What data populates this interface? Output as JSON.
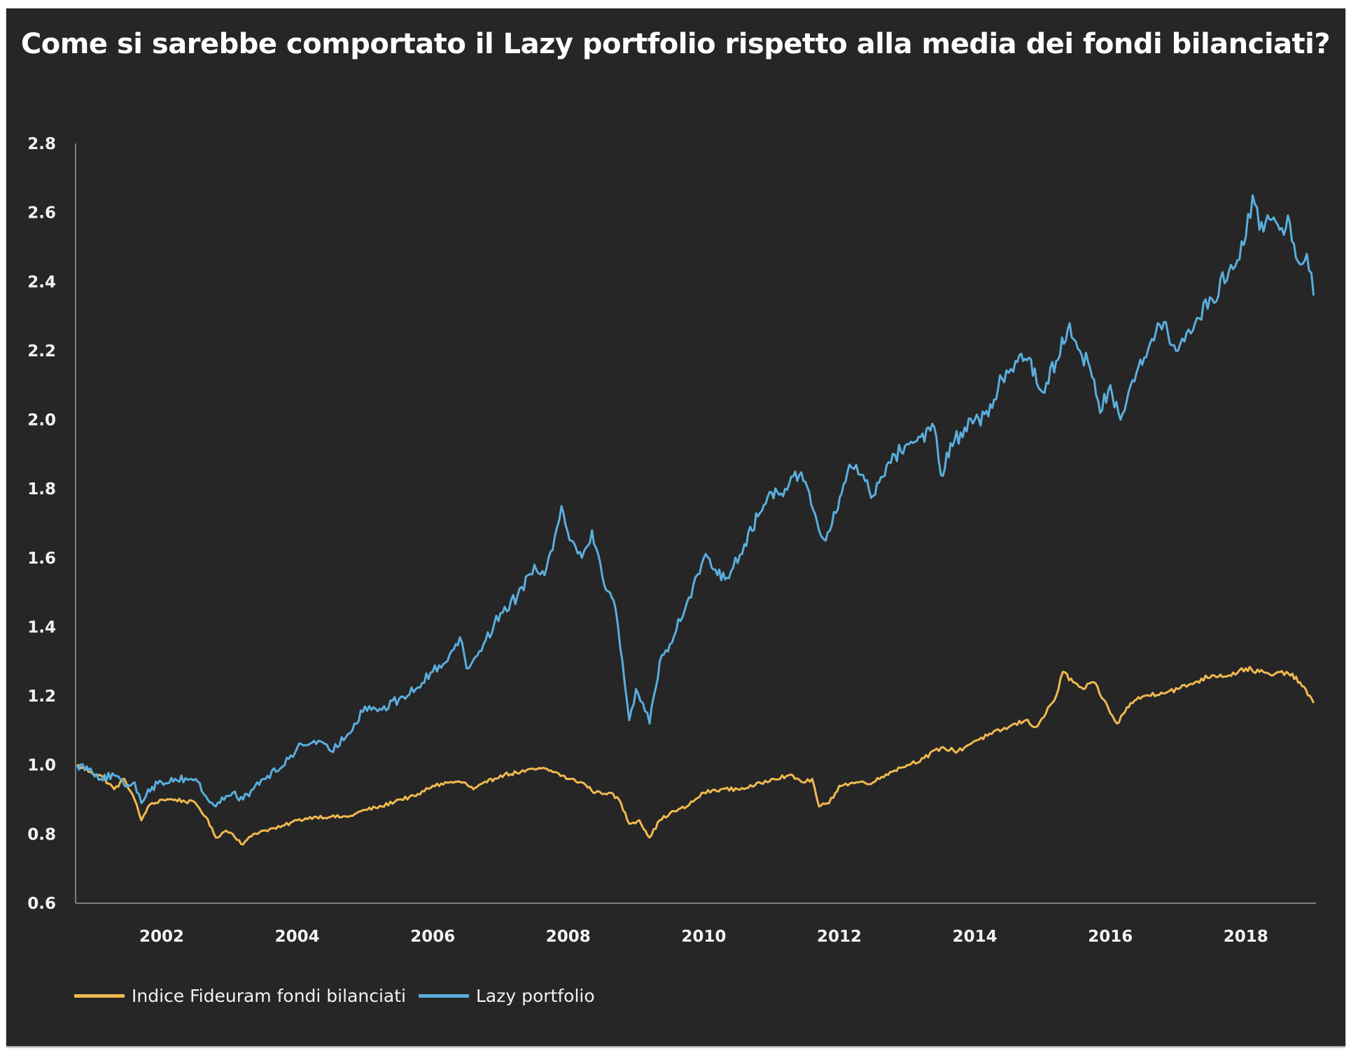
{
  "chart_data": {
    "type": "line",
    "title": "Come si sarebbe comportato il Lazy portfolio rispetto alla media dei fondi bilanciati?",
    "xlabel": "",
    "ylabel": "",
    "xlim": [
      2000.73,
      2019.02
    ],
    "ylim": [
      0.6,
      2.8
    ],
    "y_ticks": [
      "0.6",
      "0.8",
      "1.0",
      "1.2",
      "1.4",
      "1.6",
      "1.8",
      "2.0",
      "2.2",
      "2.4",
      "2.6",
      "2.8"
    ],
    "x_ticks": [
      "2002",
      "2004",
      "2006",
      "2008",
      "2010",
      "2012",
      "2014",
      "2016",
      "2018"
    ],
    "grid": false,
    "legend_position": "bottom-left",
    "background": "#262626",
    "series": [
      {
        "name": "Indice Fideuram fondi bilanciati",
        "color": "#f0b94f",
        "x": [
          2000.75,
          2000.95,
          2001.1,
          2001.3,
          2001.45,
          2001.6,
          2001.7,
          2001.8,
          2002.0,
          2002.2,
          2002.5,
          2002.65,
          2002.8,
          2002.95,
          2003.05,
          2003.2,
          2003.35,
          2003.5,
          2003.75,
          2004.0,
          2004.25,
          2004.5,
          2004.75,
          2005.0,
          2005.25,
          2005.5,
          2005.75,
          2006.0,
          2006.25,
          2006.45,
          2006.6,
          2006.8,
          2007.0,
          2007.3,
          2007.6,
          2007.8,
          2008.0,
          2008.2,
          2008.4,
          2008.6,
          2008.75,
          2008.9,
          2009.05,
          2009.2,
          2009.35,
          2009.5,
          2009.75,
          2010.0,
          2010.25,
          2010.5,
          2010.75,
          2011.0,
          2011.25,
          2011.5,
          2011.6,
          2011.7,
          2011.85,
          2012.0,
          2012.25,
          2012.5,
          2012.75,
          2013.0,
          2013.25,
          2013.5,
          2013.75,
          2014.0,
          2014.25,
          2014.5,
          2014.75,
          2014.9,
          2015.05,
          2015.2,
          2015.3,
          2015.45,
          2015.6,
          2015.75,
          2015.9,
          2016.0,
          2016.1,
          2016.3,
          2016.5,
          2016.75,
          2017.0,
          2017.25,
          2017.5,
          2017.75,
          2018.0,
          2018.2,
          2018.4,
          2018.6,
          2018.8,
          2019.0
        ],
        "values": [
          1.0,
          0.98,
          0.97,
          0.93,
          0.96,
          0.9,
          0.84,
          0.88,
          0.9,
          0.9,
          0.89,
          0.85,
          0.79,
          0.81,
          0.8,
          0.77,
          0.8,
          0.81,
          0.82,
          0.84,
          0.85,
          0.85,
          0.85,
          0.87,
          0.88,
          0.9,
          0.91,
          0.94,
          0.95,
          0.95,
          0.93,
          0.95,
          0.97,
          0.98,
          0.99,
          0.98,
          0.96,
          0.95,
          0.92,
          0.92,
          0.9,
          0.83,
          0.84,
          0.79,
          0.84,
          0.86,
          0.88,
          0.92,
          0.93,
          0.93,
          0.94,
          0.96,
          0.97,
          0.95,
          0.96,
          0.88,
          0.89,
          0.94,
          0.95,
          0.95,
          0.98,
          1.0,
          1.02,
          1.05,
          1.04,
          1.07,
          1.09,
          1.11,
          1.13,
          1.11,
          1.15,
          1.2,
          1.27,
          1.24,
          1.22,
          1.24,
          1.19,
          1.15,
          1.12,
          1.18,
          1.2,
          1.21,
          1.22,
          1.24,
          1.26,
          1.26,
          1.28,
          1.27,
          1.26,
          1.27,
          1.24,
          1.18
        ]
      },
      {
        "name": "Lazy portfolio",
        "color": "#5aaede",
        "x": [
          2000.75,
          2000.95,
          2001.1,
          2001.3,
          2001.45,
          2001.6,
          2001.7,
          2001.8,
          2002.0,
          2002.2,
          2002.5,
          2002.65,
          2002.8,
          2002.95,
          2003.05,
          2003.2,
          2003.35,
          2003.5,
          2003.75,
          2004.0,
          2004.25,
          2004.5,
          2004.75,
          2005.0,
          2005.25,
          2005.5,
          2005.75,
          2006.0,
          2006.25,
          2006.4,
          2006.5,
          2006.75,
          2007.0,
          2007.25,
          2007.5,
          2007.65,
          2007.8,
          2007.9,
          2008.05,
          2008.2,
          2008.35,
          2008.5,
          2008.7,
          2008.8,
          2008.9,
          2009.0,
          2009.1,
          2009.2,
          2009.35,
          2009.5,
          2009.75,
          2010.0,
          2010.2,
          2010.4,
          2010.6,
          2010.8,
          2011.0,
          2011.2,
          2011.35,
          2011.5,
          2011.7,
          2011.8,
          2011.95,
          2012.15,
          2012.35,
          2012.5,
          2012.7,
          2013.0,
          2013.2,
          2013.4,
          2013.5,
          2013.7,
          2014.0,
          2014.2,
          2014.4,
          2014.6,
          2014.8,
          2015.0,
          2015.2,
          2015.4,
          2015.55,
          2015.7,
          2015.85,
          2016.0,
          2016.15,
          2016.3,
          2016.5,
          2016.7,
          2016.85,
          2017.0,
          2017.25,
          2017.5,
          2017.75,
          2018.0,
          2018.1,
          2018.2,
          2018.35,
          2018.5,
          2018.65,
          2018.8,
          2018.9,
          2019.0
        ],
        "values": [
          1.0,
          0.99,
          0.96,
          0.97,
          0.94,
          0.95,
          0.89,
          0.93,
          0.95,
          0.96,
          0.96,
          0.91,
          0.88,
          0.91,
          0.92,
          0.9,
          0.93,
          0.96,
          0.99,
          1.05,
          1.07,
          1.04,
          1.09,
          1.17,
          1.16,
          1.19,
          1.22,
          1.27,
          1.32,
          1.37,
          1.28,
          1.35,
          1.44,
          1.49,
          1.58,
          1.55,
          1.66,
          1.75,
          1.65,
          1.6,
          1.68,
          1.55,
          1.45,
          1.3,
          1.13,
          1.22,
          1.18,
          1.12,
          1.3,
          1.35,
          1.47,
          1.6,
          1.55,
          1.56,
          1.64,
          1.72,
          1.79,
          1.8,
          1.85,
          1.82,
          1.68,
          1.65,
          1.73,
          1.87,
          1.84,
          1.78,
          1.87,
          1.93,
          1.95,
          1.98,
          1.84,
          1.94,
          2.0,
          2.01,
          2.12,
          2.17,
          2.18,
          2.08,
          2.17,
          2.28,
          2.2,
          2.15,
          2.02,
          2.1,
          2.0,
          2.1,
          2.18,
          2.28,
          2.25,
          2.2,
          2.28,
          2.35,
          2.43,
          2.53,
          2.65,
          2.55,
          2.58,
          2.55,
          2.57,
          2.45,
          2.48,
          2.36
        ]
      }
    ]
  }
}
